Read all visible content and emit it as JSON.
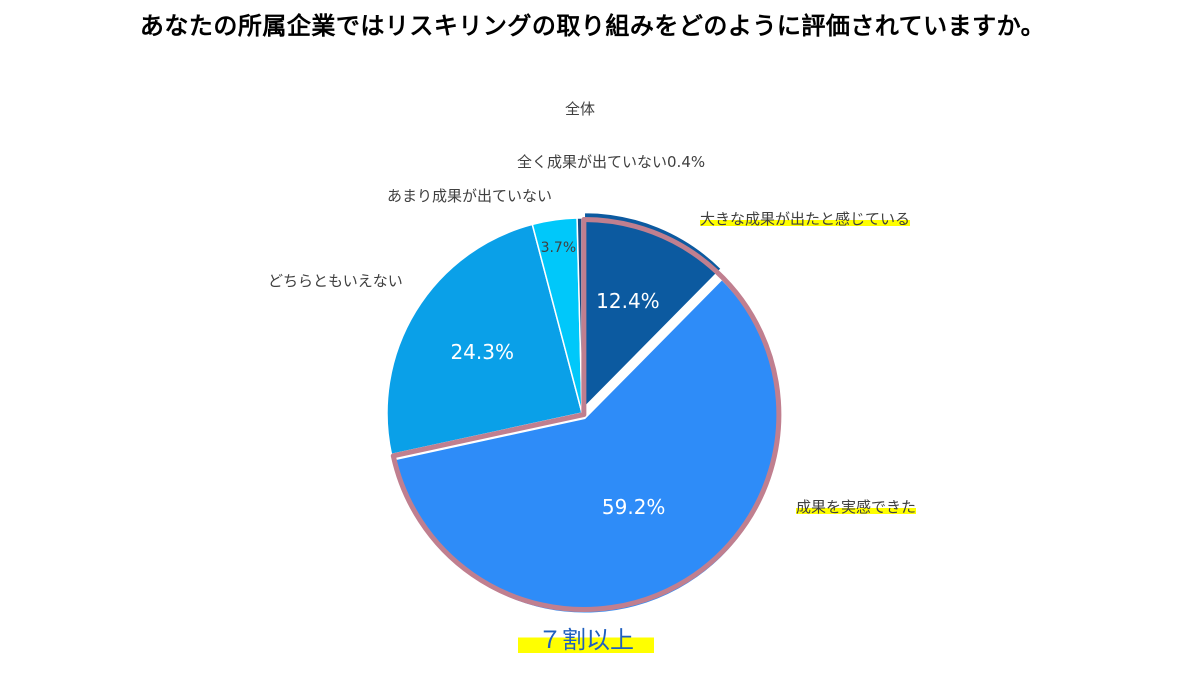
{
  "title": "あなたの所属企業ではリスキリングの取り組みをどのように評価されていますか。",
  "callout": "７割以上",
  "chart_data": {
    "type": "pie",
    "subtitle": "全体",
    "slices": [
      {
        "label": "大きな成果が出たと感じている",
        "value": 12.4,
        "value_label": "12.4%",
        "color": "#0c5aa0",
        "highlight": true
      },
      {
        "label": "成果を実感できた",
        "value": 59.2,
        "value_label": "59.2%",
        "color": "#2e8cf8",
        "highlight": true
      },
      {
        "label": "どちらともいえない",
        "value": 24.3,
        "value_label": "24.3%",
        "color": "#0aa0e8",
        "highlight": false
      },
      {
        "label": "あまり成果が出ていない",
        "value": 3.7,
        "value_label": "3.7%",
        "color": "#00c8fa",
        "highlight": false
      },
      {
        "label": "全く成果が出ていない",
        "value": 0.4,
        "value_label": "0.4%",
        "color": "#1a4a80",
        "highlight": false
      }
    ],
    "start": "12 o'clock",
    "direction": "clockwise",
    "emphasized_group": [
      "大きな成果が出たと感じている",
      "成果を実感できた"
    ],
    "emphasis_color": "#c07f8f"
  }
}
